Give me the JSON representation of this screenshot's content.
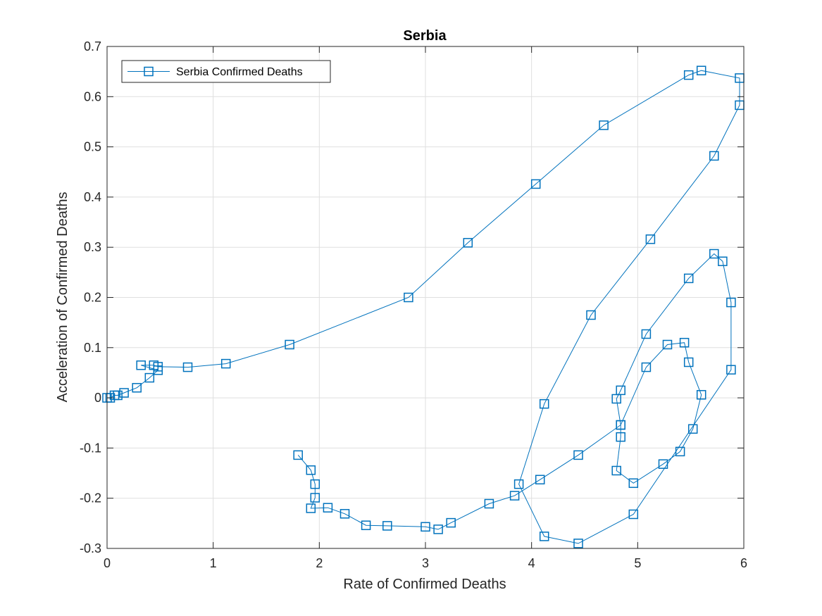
{
  "chart_data": {
    "type": "line",
    "title": "Serbia",
    "xlabel": "Rate of Confirmed Deaths",
    "ylabel": "Acceleration of Confirmed Deaths",
    "xlim": [
      0,
      6
    ],
    "ylim": [
      -0.3,
      0.7
    ],
    "x_ticks": [
      "0",
      "1",
      "2",
      "3",
      "4",
      "5",
      "6"
    ],
    "y_ticks": [
      "-0.3",
      "-0.2",
      "-0.1",
      "0",
      "0.1",
      "0.2",
      "0.3",
      "0.4",
      "0.5",
      "0.6",
      "0.7"
    ],
    "grid": true,
    "legend_position": "top-left",
    "marker": "square",
    "color": "#0072BD",
    "series": [
      {
        "name": "Serbia Confirmed Deaths",
        "points": [
          [
            0.0,
            0.0
          ],
          [
            0.03,
            0.0
          ],
          [
            0.07,
            0.005
          ],
          [
            0.1,
            0.005
          ],
          [
            0.16,
            0.01
          ],
          [
            0.28,
            0.02
          ],
          [
            0.4,
            0.04
          ],
          [
            0.48,
            0.055
          ],
          [
            0.32,
            0.065
          ],
          [
            0.44,
            0.065
          ],
          [
            0.48,
            0.062
          ],
          [
            0.76,
            0.061
          ],
          [
            1.12,
            0.068
          ],
          [
            1.72,
            0.106
          ],
          [
            2.84,
            0.2
          ],
          [
            3.4,
            0.309
          ],
          [
            4.04,
            0.426
          ],
          [
            4.68,
            0.543
          ],
          [
            5.48,
            0.643
          ],
          [
            5.6,
            0.652
          ],
          [
            5.96,
            0.637
          ],
          [
            5.96,
            0.583
          ],
          [
            5.72,
            0.482
          ],
          [
            5.12,
            0.316
          ],
          [
            4.56,
            0.165
          ],
          [
            4.12,
            -0.012
          ],
          [
            3.88,
            -0.172
          ],
          [
            4.12,
            -0.276
          ],
          [
            4.44,
            -0.29
          ],
          [
            4.96,
            -0.232
          ],
          [
            5.88,
            0.056
          ],
          [
            5.88,
            0.19
          ],
          [
            5.8,
            0.272
          ],
          [
            5.72,
            0.287
          ],
          [
            5.48,
            0.238
          ],
          [
            5.08,
            0.127
          ],
          [
            4.84,
            0.015
          ],
          [
            4.8,
            -0.002
          ],
          [
            4.84,
            -0.054
          ],
          [
            4.84,
            -0.078
          ],
          [
            4.8,
            -0.145
          ],
          [
            4.96,
            -0.17
          ],
          [
            5.24,
            -0.132
          ],
          [
            5.4,
            -0.107
          ],
          [
            5.52,
            -0.062
          ],
          [
            5.6,
            0.006
          ],
          [
            5.48,
            0.071
          ],
          [
            5.44,
            0.11
          ],
          [
            5.28,
            0.106
          ],
          [
            5.08,
            0.061
          ],
          [
            4.84,
            -0.054
          ],
          [
            4.44,
            -0.114
          ],
          [
            4.08,
            -0.163
          ],
          [
            3.84,
            -0.195
          ],
          [
            3.6,
            -0.211
          ],
          [
            3.24,
            -0.249
          ],
          [
            3.12,
            -0.262
          ],
          [
            3.0,
            -0.257
          ],
          [
            2.64,
            -0.255
          ],
          [
            2.44,
            -0.254
          ],
          [
            2.24,
            -0.231
          ],
          [
            2.08,
            -0.219
          ],
          [
            1.92,
            -0.22
          ],
          [
            1.96,
            -0.199
          ],
          [
            1.96,
            -0.172
          ],
          [
            1.92,
            -0.144
          ],
          [
            1.8,
            -0.114
          ]
        ]
      }
    ]
  }
}
